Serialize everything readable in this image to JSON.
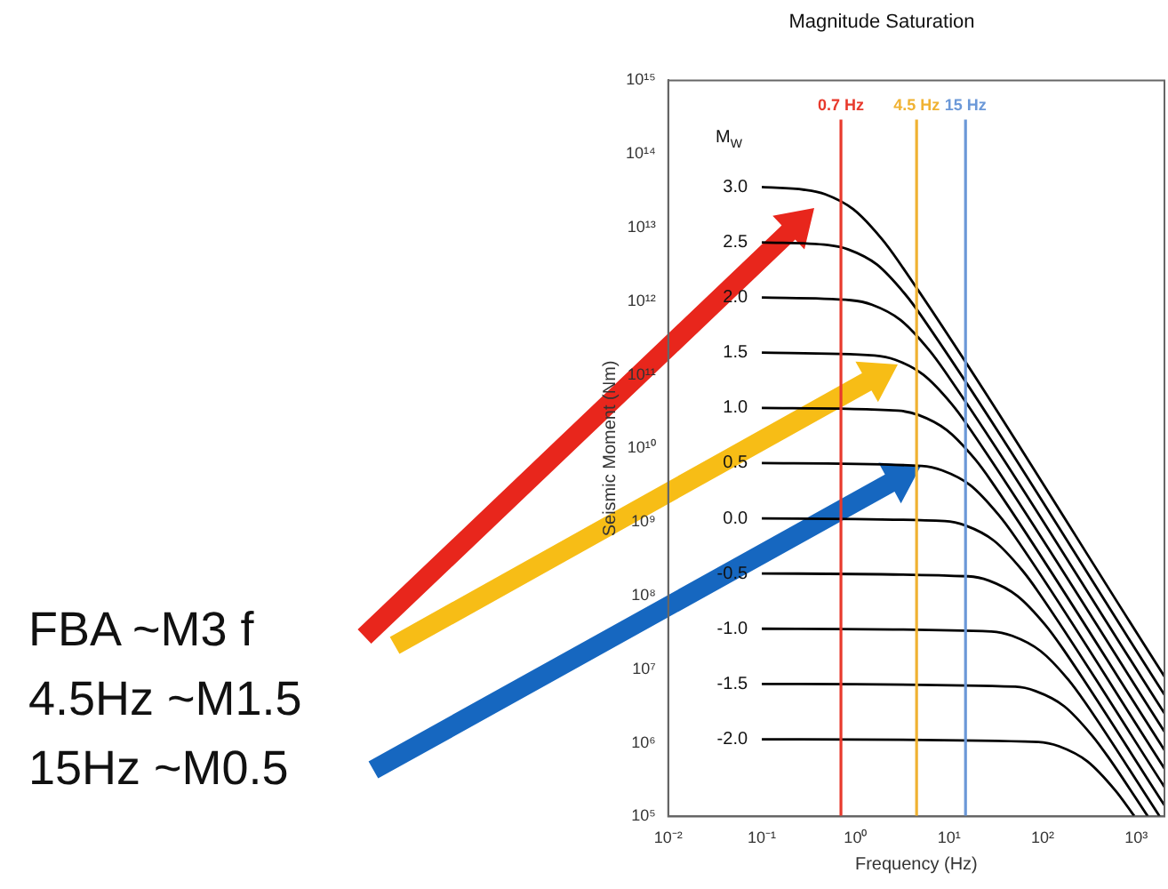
{
  "chart_data": {
    "type": "line",
    "title": "Magnitude Saturation",
    "xlabel": "Frequency (Hz)",
    "ylabel": "Seismic Moment (Nm)",
    "legend_title": "M$_{W}$",
    "annotations": [
      "FBA ~M3 f",
      "4.5Hz ~M1.5",
      "15Hz ~M0.5"
    ],
    "log": "xy",
    "grid": false,
    "legend": false,
    "marker": "none",
    "xlim": [
      0.01,
      2000
    ],
    "ylim": [
      100000,
      1000000000000000.0
    ],
    "xticks": [
      {
        "value": 0.01,
        "label": "10⁻²"
      },
      {
        "value": 0.1,
        "label": "10⁻¹"
      },
      {
        "value": 1,
        "label": "10⁰"
      },
      {
        "value": 10,
        "label": "10¹"
      },
      {
        "value": 100,
        "label": "10²"
      },
      {
        "value": 1000,
        "label": "10³"
      }
    ],
    "yticks": [
      {
        "value": 100000,
        "label": "10⁵"
      },
      {
        "value": 1000000,
        "label": "10⁶"
      },
      {
        "value": 10000000.0,
        "label": "10⁷"
      },
      {
        "value": 100000000.0,
        "label": "10⁸"
      },
      {
        "value": 1000000000.0,
        "label": "10⁹"
      },
      {
        "value": 10000000000.0,
        "label": "10¹⁰"
      },
      {
        "value": 100000000000.0,
        "label": "10¹¹"
      },
      {
        "value": 1000000000000.0,
        "label": "10¹²"
      },
      {
        "value": 10000000000000.0,
        "label": "10¹³"
      },
      {
        "value": 100000000000000.0,
        "label": "10¹⁴"
      },
      {
        "value": 1000000000000000.0,
        "label": "10¹⁵"
      }
    ],
    "ref_lines": [
      {
        "axis": "x",
        "value": 0.7,
        "label": "0.7 Hz",
        "color": "#e8392c"
      },
      {
        "axis": "x",
        "value": 4.5,
        "label": "4.5 Hz",
        "color": "#f0b232"
      },
      {
        "axis": "x",
        "value": 15,
        "label": "15 Hz",
        "color": "#6b98d8"
      }
    ],
    "series": [
      {
        "name": "3.0",
        "color": "#000000",
        "x": [
          0.1,
          0.285,
          0.475,
          0.95,
          1.9,
          2.85,
          2000
        ],
        "values": [
          35500000000000.0,
          32600000000000.0,
          28400000000000.0,
          17700000000000.0,
          7100000000000.0,
          3550000000000.0,
          7980000.0
        ]
      },
      {
        "name": "2.5",
        "color": "#000000",
        "x": [
          0.1,
          0.51,
          0.84,
          1.69,
          3.37,
          5.06,
          2000
        ],
        "values": [
          6310000000000.0,
          5790000000000.0,
          5050000000000.0,
          3160000000000.0,
          1260000000000.0,
          631000000000.0,
          4490000.0
        ]
      },
      {
        "name": "2.0",
        "color": "#000000",
        "x": [
          0.1,
          0.9,
          1.5,
          3,
          6,
          9,
          2000
        ],
        "values": [
          1120000000000.0,
          1030000000000.0,
          897000000000.0,
          561000000000.0,
          224000000000.0,
          112000000000.0,
          2520000.0
        ]
      },
      {
        "name": "1.5",
        "color": "#000000",
        "x": [
          0.1,
          1.6,
          2.67,
          5.33,
          10.7,
          16,
          2000
        ],
        "values": [
          200000000000.0,
          183000000000.0,
          160000000000.0,
          99800000000.0,
          39900000000.0,
          20000000000.0,
          1420000.0
        ]
      },
      {
        "name": "1.0",
        "color": "#000000",
        "x": [
          0.1,
          2.84,
          4.74,
          9.48,
          19,
          28.4,
          2000
        ],
        "values": [
          35500000000.0,
          32600000000.0,
          28400000000.0,
          17700000000.0,
          7100000000.0,
          3550000000.0,
          798000.0
        ]
      },
      {
        "name": "0.5",
        "color": "#000000",
        "x": [
          0.1,
          5.1,
          8.4,
          16.9,
          33.7,
          50.6,
          2000
        ],
        "values": [
          6310000000.0,
          5790000000.0,
          5050000000.0,
          3160000000.0,
          1260000000.0,
          631000000.0,
          449000.0
        ]
      },
      {
        "name": "0.0",
        "color": "#000000",
        "x": [
          0.1,
          9,
          15,
          30,
          60,
          90,
          2000
        ],
        "values": [
          1120000000.0,
          1030000000.0,
          897000000.0,
          561000000.0,
          224000000.0,
          112000000.0,
          252000.0
        ]
      },
      {
        "name": "-0.5",
        "color": "#000000",
        "x": [
          0.1,
          16,
          26.7,
          53.3,
          107,
          160,
          2000
        ],
        "values": [
          200000000.0,
          183000000.0,
          160000000.0,
          99800000.0,
          39900000.0,
          20000000.0,
          142000.0
        ]
      },
      {
        "name": "-1.0",
        "color": "#000000",
        "x": [
          0.1,
          28.4,
          47.4,
          94.8,
          190,
          284,
          1780
        ],
        "values": [
          35500000.0,
          32600000.0,
          28400000.0,
          17700000.0,
          7100000.0,
          3550000.0,
          100000.0
        ]
      },
      {
        "name": "-1.5",
        "color": "#000000",
        "x": [
          0.1,
          51,
          84,
          169,
          337,
          506,
          1330
        ],
        "values": [
          6310000.0,
          5790000.0,
          5050000.0,
          3160000.0,
          1260000.0,
          631000.0,
          100000.0
        ]
      },
      {
        "name": "-2.0",
        "color": "#000000",
        "x": [
          0.1,
          90,
          150,
          300,
          600,
          950
        ],
        "values": [
          1120000.0,
          1030000.0,
          897000.0,
          561000.0,
          224000.0,
          102000.0
        ]
      }
    ]
  }
}
